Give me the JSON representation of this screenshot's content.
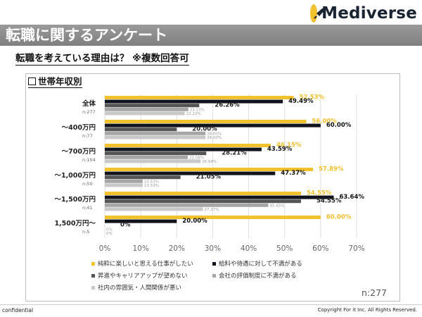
{
  "brand": {
    "name": "Mediverse",
    "accent_color": "#f2c12e",
    "icon": "rocket-icon"
  },
  "header": {
    "title": "転職に関するアンケート",
    "subtitle": "転職を考えている理由は？ ※複数回答可"
  },
  "panel": {
    "title": "世帯年収別",
    "n_label": "n:277"
  },
  "footer": {
    "left": "confidential",
    "right": "Copyright For it Inc. All Rights Reserved."
  },
  "chart_data": {
    "type": "bar",
    "orientation": "horizontal",
    "title": "世帯年収別",
    "xlabel": "",
    "ylabel": "",
    "xlim": [
      0,
      70
    ],
    "x_ticks": [
      "0%",
      "10%",
      "20%",
      "30%",
      "40%",
      "50%",
      "60%",
      "70%"
    ],
    "grid": true,
    "legend_position": "bottom",
    "categories": [
      {
        "label": "全体",
        "n": "n:277"
      },
      {
        "label": "～400万円",
        "n": "n:77"
      },
      {
        "label": "～700万円",
        "n": "n:104"
      },
      {
        "label": "～1,000万円",
        "n": "n:50"
      },
      {
        "label": "～1,500万円",
        "n": "n:41"
      },
      {
        "label": "1,500万円～",
        "n": "n:5"
      }
    ],
    "series": [
      {
        "name": "純粋に楽しいと思える仕事がしたい",
        "color": "#f2c12e",
        "label_color": "#f2c12e",
        "values": [
          52.53,
          56.0,
          46.15,
          57.89,
          54.55,
          60.0
        ],
        "labels": [
          "52.53%",
          "56.00%",
          "46.15%",
          "57.89%",
          "54.55%",
          "60.00%"
        ]
      },
      {
        "name": "給料や待遇に対して不満がある",
        "color": "#10131c",
        "label_color": "#111111",
        "values": [
          49.49,
          60.0,
          43.59,
          47.37,
          63.64,
          20.0
        ],
        "labels": [
          "49.49%",
          "60.00%",
          "43.59%",
          "47.37%",
          "63.64%",
          "20.00%"
        ]
      },
      {
        "name": "昇進やキャリアアップが望めない",
        "color": "#555555",
        "label_color": "#222222",
        "values": [
          26.26,
          20.0,
          28.21,
          21.05,
          54.55,
          0
        ],
        "labels": [
          "26.26%",
          "20.00%",
          "28.21%",
          "21.05%",
          "54.55%",
          "0%"
        ]
      },
      {
        "name": "会社の評価制度に不満がある",
        "color": "#a6a6a6",
        "label_color": "#999999",
        "values": [
          23.23,
          28.0,
          23.08,
          10.53,
          45.45,
          0
        ],
        "labels": [
          "23.23%",
          "28.00%",
          "23.08%",
          "10.53%",
          "45.45%",
          "0%"
        ]
      },
      {
        "name": "社内の雰囲気・人間関係が悪い",
        "color": "#c8c8c8",
        "label_color": "#999999",
        "values": [
          22.22,
          28.0,
          26.64,
          10.53,
          27.27,
          0
        ],
        "labels": [
          "22.22%",
          "28.00%",
          "26.64%",
          "10.53%",
          "27.27%",
          "0%"
        ]
      }
    ]
  }
}
